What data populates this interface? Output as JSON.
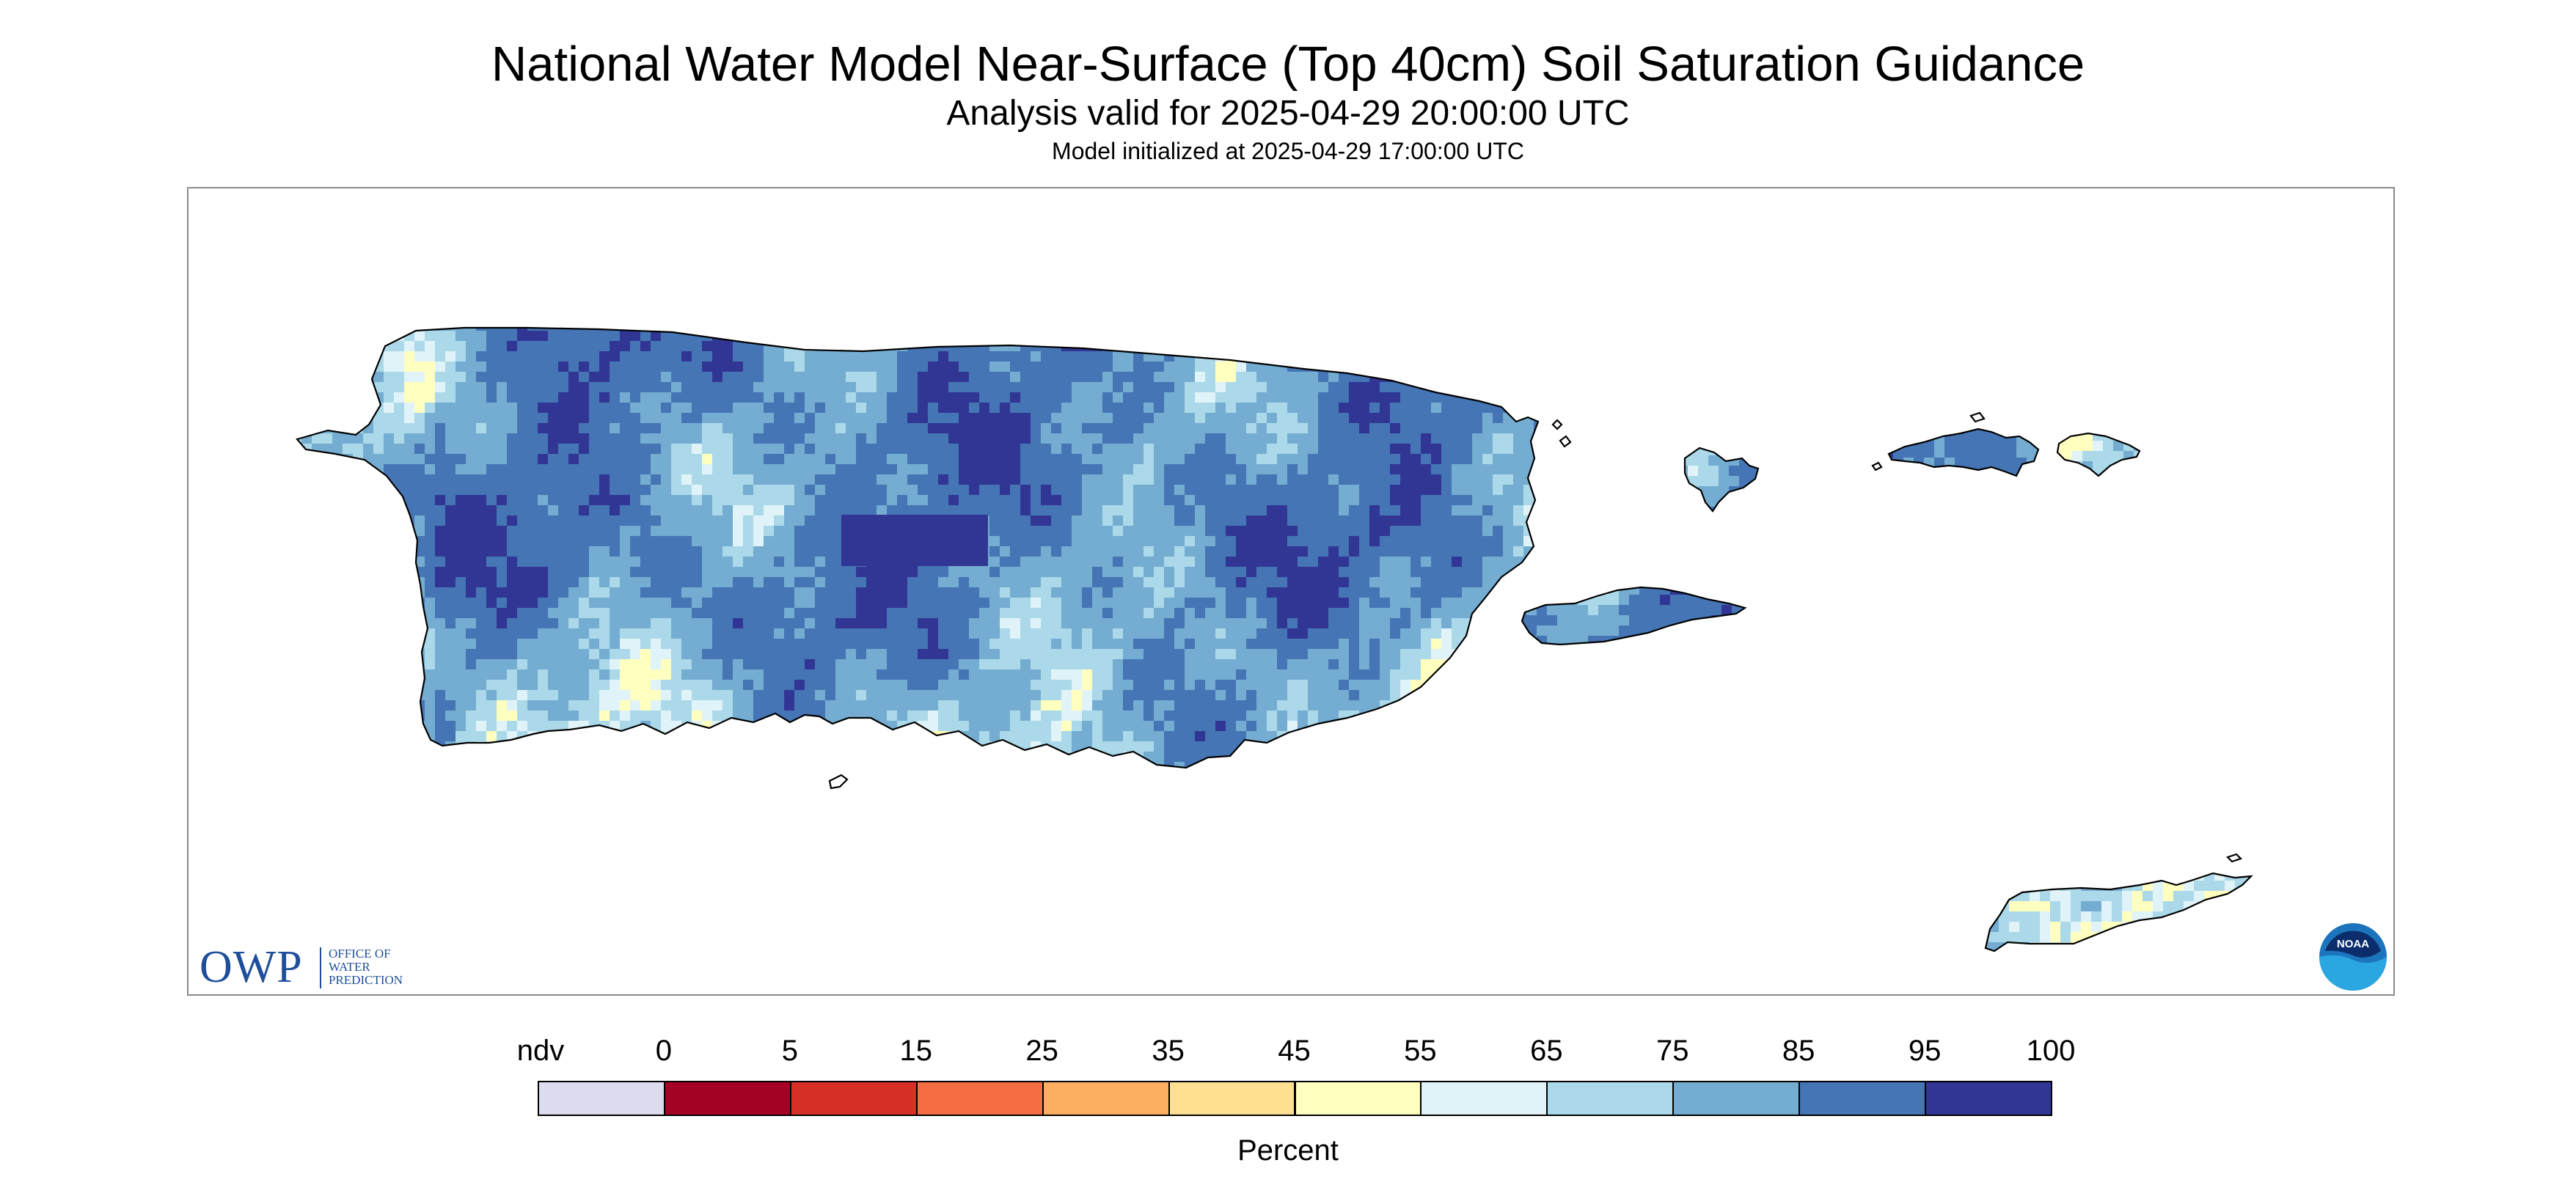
{
  "header": {
    "title": "National Water Model Near-Surface (Top 40cm) Soil Saturation Guidance",
    "subtitle": "Analysis valid for 2025-04-29 20:00:00 UTC",
    "init": "Model initialized at 2025-04-29 17:00:00 UTC"
  },
  "logos": {
    "owp_mark": "OWP",
    "owp_line1": "OFFICE OF",
    "owp_line2": "WATER",
    "owp_line3": "PREDICTION",
    "noaa_text": "NOAA"
  },
  "legend": {
    "labels": [
      "ndv",
      "0",
      "5",
      "15",
      "25",
      "35",
      "45",
      "55",
      "65",
      "75",
      "85",
      "95",
      "100"
    ],
    "colors": [
      "#dcdcef",
      "#a50026",
      "#d73027",
      "#f46d43",
      "#fdae61",
      "#fee090",
      "#ffffbf",
      "#e0f3f8",
      "#abd9e9",
      "#74add1",
      "#4575b4",
      "#313695"
    ],
    "unit": "Percent"
  },
  "map": {
    "regions": [
      "Puerto Rico",
      "Vieques",
      "Culebra",
      "St. Thomas",
      "St. John",
      "St. Croix"
    ],
    "ocean_color": "#ffffff",
    "coast_color": "#000000"
  }
}
